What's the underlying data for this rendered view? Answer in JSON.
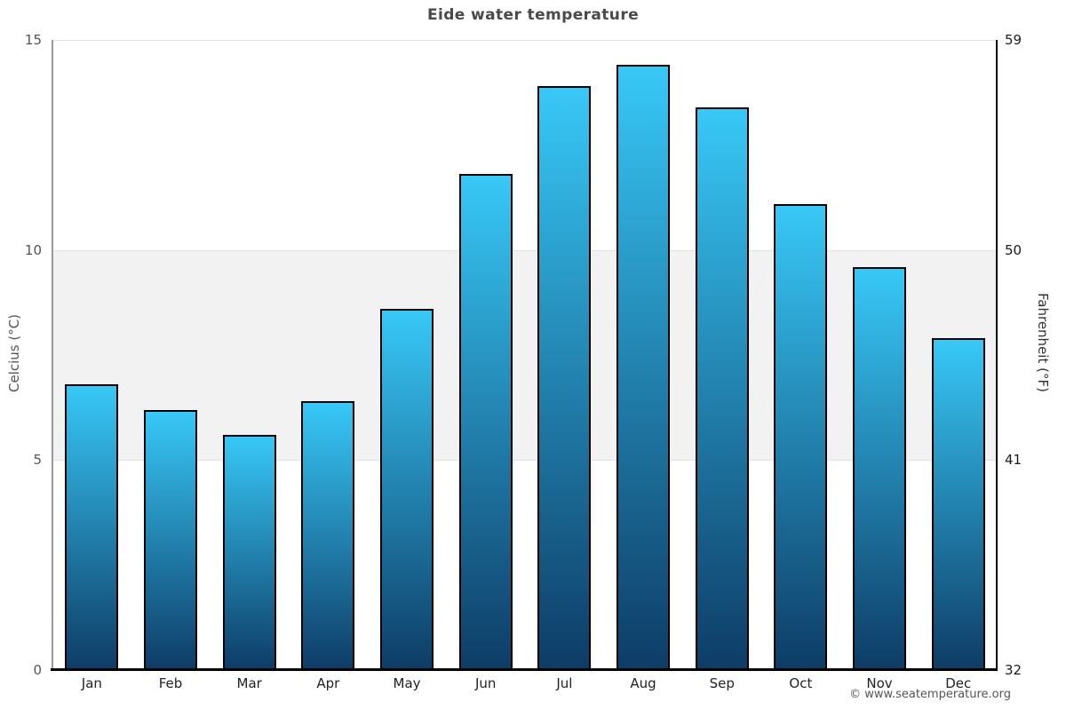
{
  "title": "Eide water temperature",
  "footer": "© www.seatemperature.org",
  "axes": {
    "left_title": "Celcius (°C)",
    "right_title": "Fahrenheit (°F)",
    "left_ticks": [
      "15",
      "10",
      "5",
      "0"
    ],
    "right_ticks": [
      "59",
      "50",
      "41",
      "32"
    ]
  },
  "colors": {
    "bar_top": "#38c8f7",
    "bar_bottom": "#0d3c66",
    "bar_border": "#000000",
    "band": "#f2f2f2",
    "gridline": "#e0e0e0",
    "left_axis_line": "#999999",
    "right_axis_line": "#000000",
    "bottom_axis_line": "#000000",
    "title_color": "#4a4a4a"
  },
  "chart_data": {
    "type": "bar",
    "title": "Eide water temperature",
    "categories": [
      "Jan",
      "Feb",
      "Mar",
      "Apr",
      "May",
      "Jun",
      "Jul",
      "Aug",
      "Sep",
      "Oct",
      "Nov",
      "Dec"
    ],
    "series": [
      {
        "name": "Water temperature",
        "unit": "°C",
        "values": [
          6.8,
          6.2,
          5.6,
          6.4,
          8.6,
          11.8,
          13.9,
          14.4,
          13.4,
          11.1,
          9.6,
          7.9
        ]
      }
    ],
    "xlabel": "",
    "ylabel": "Celcius (°C)",
    "ylabel_right": "Fahrenheit (°F)",
    "ylim_celsius": [
      0,
      15
    ],
    "ylim_fahrenheit": [
      32,
      59
    ],
    "yticks_celsius": [
      15,
      10,
      5,
      0
    ],
    "yticks_fahrenheit": [
      59,
      50,
      41,
      32
    ],
    "shaded_band_celsius": [
      5,
      10
    ],
    "grid": true,
    "legend_position": "none"
  }
}
